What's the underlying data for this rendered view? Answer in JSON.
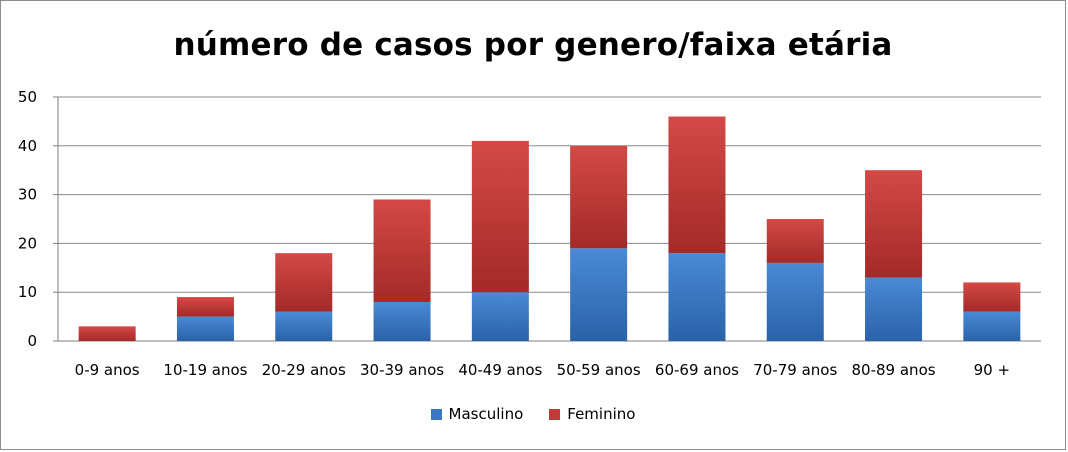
{
  "chart_data": {
    "type": "bar",
    "stacked": true,
    "title": "número de casos por genero/faixa etária",
    "xlabel": "",
    "ylabel": "",
    "ylim": [
      0,
      50
    ],
    "yticks": [
      "0",
      "10",
      "20",
      "30",
      "40",
      "50"
    ],
    "grid": true,
    "legend_position": "bottom",
    "categories": [
      "0-9 anos",
      "10-19 anos",
      "20-29 anos",
      "30-39 anos",
      "40-49 anos",
      "50-59 anos",
      "60-69 anos",
      "70-79 anos",
      "80-89 anos",
      "90 +"
    ],
    "series": [
      {
        "name": "Masculino",
        "color": "#3a78c3",
        "values": [
          0,
          5,
          6,
          8,
          10,
          19,
          18,
          16,
          13,
          6
        ]
      },
      {
        "name": "Feminino",
        "color": "#c23b38",
        "values": [
          3,
          4,
          12,
          21,
          31,
          21,
          28,
          9,
          22,
          6
        ]
      }
    ]
  }
}
